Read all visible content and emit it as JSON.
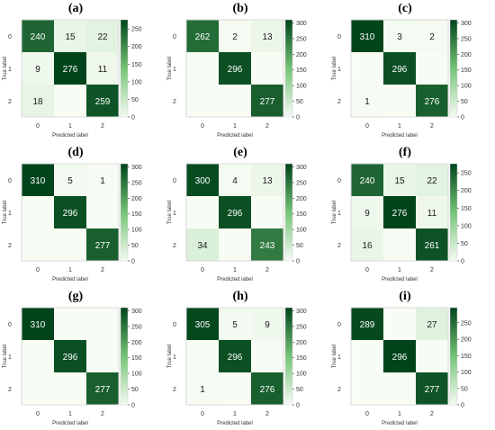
{
  "figure": {
    "colors": {
      "low": "#f7fcf5",
      "high": "#00441b",
      "cell_text_dark": "#1a1a1a",
      "cell_text_light": "#ffffff"
    }
  },
  "chart_data": [
    {
      "type": "heatmap",
      "title": "(a)",
      "xlabel": "Predicted label",
      "ylabel": "True label",
      "x_ticks": [
        "0",
        "1",
        "2"
      ],
      "y_ticks": [
        "0",
        "1",
        "2"
      ],
      "matrix": [
        [
          240,
          15,
          22
        ],
        [
          9,
          276,
          11
        ],
        [
          18,
          0,
          259
        ]
      ],
      "cell_labels": [
        [
          "240",
          "15",
          "22"
        ],
        [
          "9",
          "276",
          "11"
        ],
        [
          "18",
          "",
          "259"
        ]
      ],
      "colorbar": {
        "ticks": [
          0,
          50,
          100,
          150,
          200,
          250
        ],
        "range": [
          0,
          276
        ]
      }
    },
    {
      "type": "heatmap",
      "title": "(b)",
      "xlabel": "Predicted label",
      "ylabel": "True label",
      "x_ticks": [
        "0",
        "1",
        "2"
      ],
      "y_ticks": [
        "0",
        "1",
        "2"
      ],
      "matrix": [
        [
          262,
          2,
          13
        ],
        [
          0,
          296,
          0
        ],
        [
          0,
          0,
          277
        ]
      ],
      "cell_labels": [
        [
          "262",
          "2",
          "13"
        ],
        [
          "",
          "296",
          ""
        ],
        [
          "",
          "",
          "277"
        ]
      ],
      "colorbar": {
        "ticks": [
          0,
          50,
          100,
          150,
          200,
          250,
          300
        ],
        "range": [
          0,
          310
        ]
      }
    },
    {
      "type": "heatmap",
      "title": "(c)",
      "xlabel": "Predicted label",
      "ylabel": "True label",
      "x_ticks": [
        "0",
        "1",
        "2"
      ],
      "y_ticks": [
        "0",
        "1",
        "2"
      ],
      "matrix": [
        [
          310,
          3,
          2
        ],
        [
          0,
          296,
          0
        ],
        [
          1,
          0,
          276
        ]
      ],
      "cell_labels": [
        [
          "310",
          "3",
          "2"
        ],
        [
          "",
          "296",
          ""
        ],
        [
          "1",
          "",
          "276"
        ]
      ],
      "colorbar": {
        "ticks": [
          0,
          50,
          100,
          150,
          200,
          250,
          300
        ],
        "range": [
          0,
          310
        ]
      }
    },
    {
      "type": "heatmap",
      "title": "(d)",
      "xlabel": "Predicted label",
      "ylabel": "True label",
      "x_ticks": [
        "0",
        "1",
        "2"
      ],
      "y_ticks": [
        "0",
        "1",
        "2"
      ],
      "matrix": [
        [
          310,
          5,
          1
        ],
        [
          0,
          296,
          0
        ],
        [
          0,
          0,
          277
        ]
      ],
      "cell_labels": [
        [
          "310",
          "5",
          "1"
        ],
        [
          "",
          "296",
          ""
        ],
        [
          "",
          "",
          "277"
        ]
      ],
      "colorbar": {
        "ticks": [
          0,
          50,
          100,
          150,
          200,
          250,
          300
        ],
        "range": [
          0,
          310
        ]
      }
    },
    {
      "type": "heatmap",
      "title": "(e)",
      "xlabel": "Predicted label",
      "ylabel": "True label",
      "x_ticks": [
        "0",
        "1",
        "2"
      ],
      "y_ticks": [
        "0",
        "1",
        "2"
      ],
      "matrix": [
        [
          300,
          4,
          13
        ],
        [
          0,
          296,
          0
        ],
        [
          34,
          0,
          243
        ]
      ],
      "cell_labels": [
        [
          "300",
          "4",
          "13"
        ],
        [
          "",
          "296",
          ""
        ],
        [
          "34",
          "",
          "243"
        ]
      ],
      "colorbar": {
        "ticks": [
          0,
          50,
          100,
          150,
          200,
          250,
          300
        ],
        "range": [
          0,
          310
        ]
      }
    },
    {
      "type": "heatmap",
      "title": "(f)",
      "xlabel": "Predicted label",
      "ylabel": "True label",
      "x_ticks": [
        "0",
        "1",
        "2"
      ],
      "y_ticks": [
        "0",
        "1",
        "2"
      ],
      "matrix": [
        [
          240,
          15,
          22
        ],
        [
          9,
          276,
          11
        ],
        [
          16,
          0,
          261
        ]
      ],
      "cell_labels": [
        [
          "240",
          "15",
          "22"
        ],
        [
          "9",
          "276",
          "11"
        ],
        [
          "16",
          "",
          "261"
        ]
      ],
      "colorbar": {
        "ticks": [
          0,
          50,
          100,
          150,
          200,
          250
        ],
        "range": [
          0,
          276
        ]
      }
    },
    {
      "type": "heatmap",
      "title": "(g)",
      "xlabel": "Predicted label",
      "ylabel": "True label",
      "x_ticks": [
        "0",
        "1",
        "2"
      ],
      "y_ticks": [
        "0",
        "1",
        "2"
      ],
      "matrix": [
        [
          310,
          0,
          0
        ],
        [
          0,
          296,
          0
        ],
        [
          0,
          0,
          277
        ]
      ],
      "cell_labels": [
        [
          "310",
          "",
          ""
        ],
        [
          "",
          "296",
          ""
        ],
        [
          "",
          "",
          "277"
        ]
      ],
      "colorbar": {
        "ticks": [
          0,
          50,
          100,
          150,
          200,
          250,
          300
        ],
        "range": [
          0,
          310
        ]
      }
    },
    {
      "type": "heatmap",
      "title": "(h)",
      "xlabel": "Predicted label",
      "ylabel": "True label",
      "x_ticks": [
        "0",
        "1",
        "2"
      ],
      "y_ticks": [
        "0",
        "1",
        "2"
      ],
      "matrix": [
        [
          305,
          5,
          9
        ],
        [
          0,
          296,
          0
        ],
        [
          1,
          0,
          276
        ]
      ],
      "cell_labels": [
        [
          "305",
          "5",
          "9"
        ],
        [
          "",
          "296",
          ""
        ],
        [
          "1",
          "",
          "276"
        ]
      ],
      "colorbar": {
        "ticks": [
          0,
          50,
          100,
          150,
          200,
          250,
          300
        ],
        "range": [
          0,
          310
        ]
      }
    },
    {
      "type": "heatmap",
      "title": "(i)",
      "xlabel": "Predicted label",
      "ylabel": "True label",
      "x_ticks": [
        "0",
        "1",
        "2"
      ],
      "y_ticks": [
        "0",
        "1",
        "2"
      ],
      "matrix": [
        [
          289,
          0,
          27
        ],
        [
          0,
          296,
          0
        ],
        [
          0,
          0,
          277
        ]
      ],
      "cell_labels": [
        [
          "289",
          "",
          "27"
        ],
        [
          "",
          "296",
          ""
        ],
        [
          "",
          "",
          "277"
        ]
      ],
      "colorbar": {
        "ticks": [
          0,
          50,
          100,
          150,
          200,
          250
        ],
        "range": [
          0,
          296
        ]
      }
    }
  ]
}
